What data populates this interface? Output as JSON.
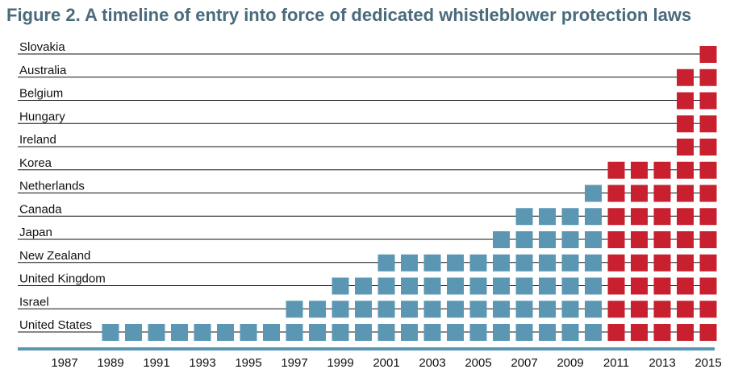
{
  "title": "Figure 2.  A timeline of entry into force of dedicated whistleblower protection laws",
  "colors": {
    "before_2011": "#5b97b3",
    "from_2011": "#c8202f",
    "axis": "#5b97b3",
    "row_line": "#111111",
    "title": "#4a6b7c"
  },
  "chart_data": {
    "type": "timeline",
    "title": "Figure 2.  A timeline of entry into force of dedicated whistleblower protection laws",
    "x_start": 1989,
    "x_end": 2015,
    "color_change_year": 2011,
    "year_ticks": [
      1987,
      1989,
      1991,
      1993,
      1995,
      1997,
      1999,
      2001,
      2003,
      2005,
      2007,
      2009,
      2011,
      2013,
      2015
    ],
    "countries": [
      {
        "name": "Slovakia",
        "start": 2015
      },
      {
        "name": "Australia",
        "start": 2014
      },
      {
        "name": "Belgium",
        "start": 2014
      },
      {
        "name": "Hungary",
        "start": 2014
      },
      {
        "name": "Ireland",
        "start": 2014
      },
      {
        "name": "Korea",
        "start": 2011
      },
      {
        "name": "Netherlands",
        "start": 2010
      },
      {
        "name": "Canada",
        "start": 2007
      },
      {
        "name": "Japan",
        "start": 2006
      },
      {
        "name": "New Zealand",
        "start": 2001
      },
      {
        "name": "United Kingdom",
        "start": 1999
      },
      {
        "name": "Israel",
        "start": 1997
      },
      {
        "name": "United States",
        "start": 1989
      }
    ]
  }
}
